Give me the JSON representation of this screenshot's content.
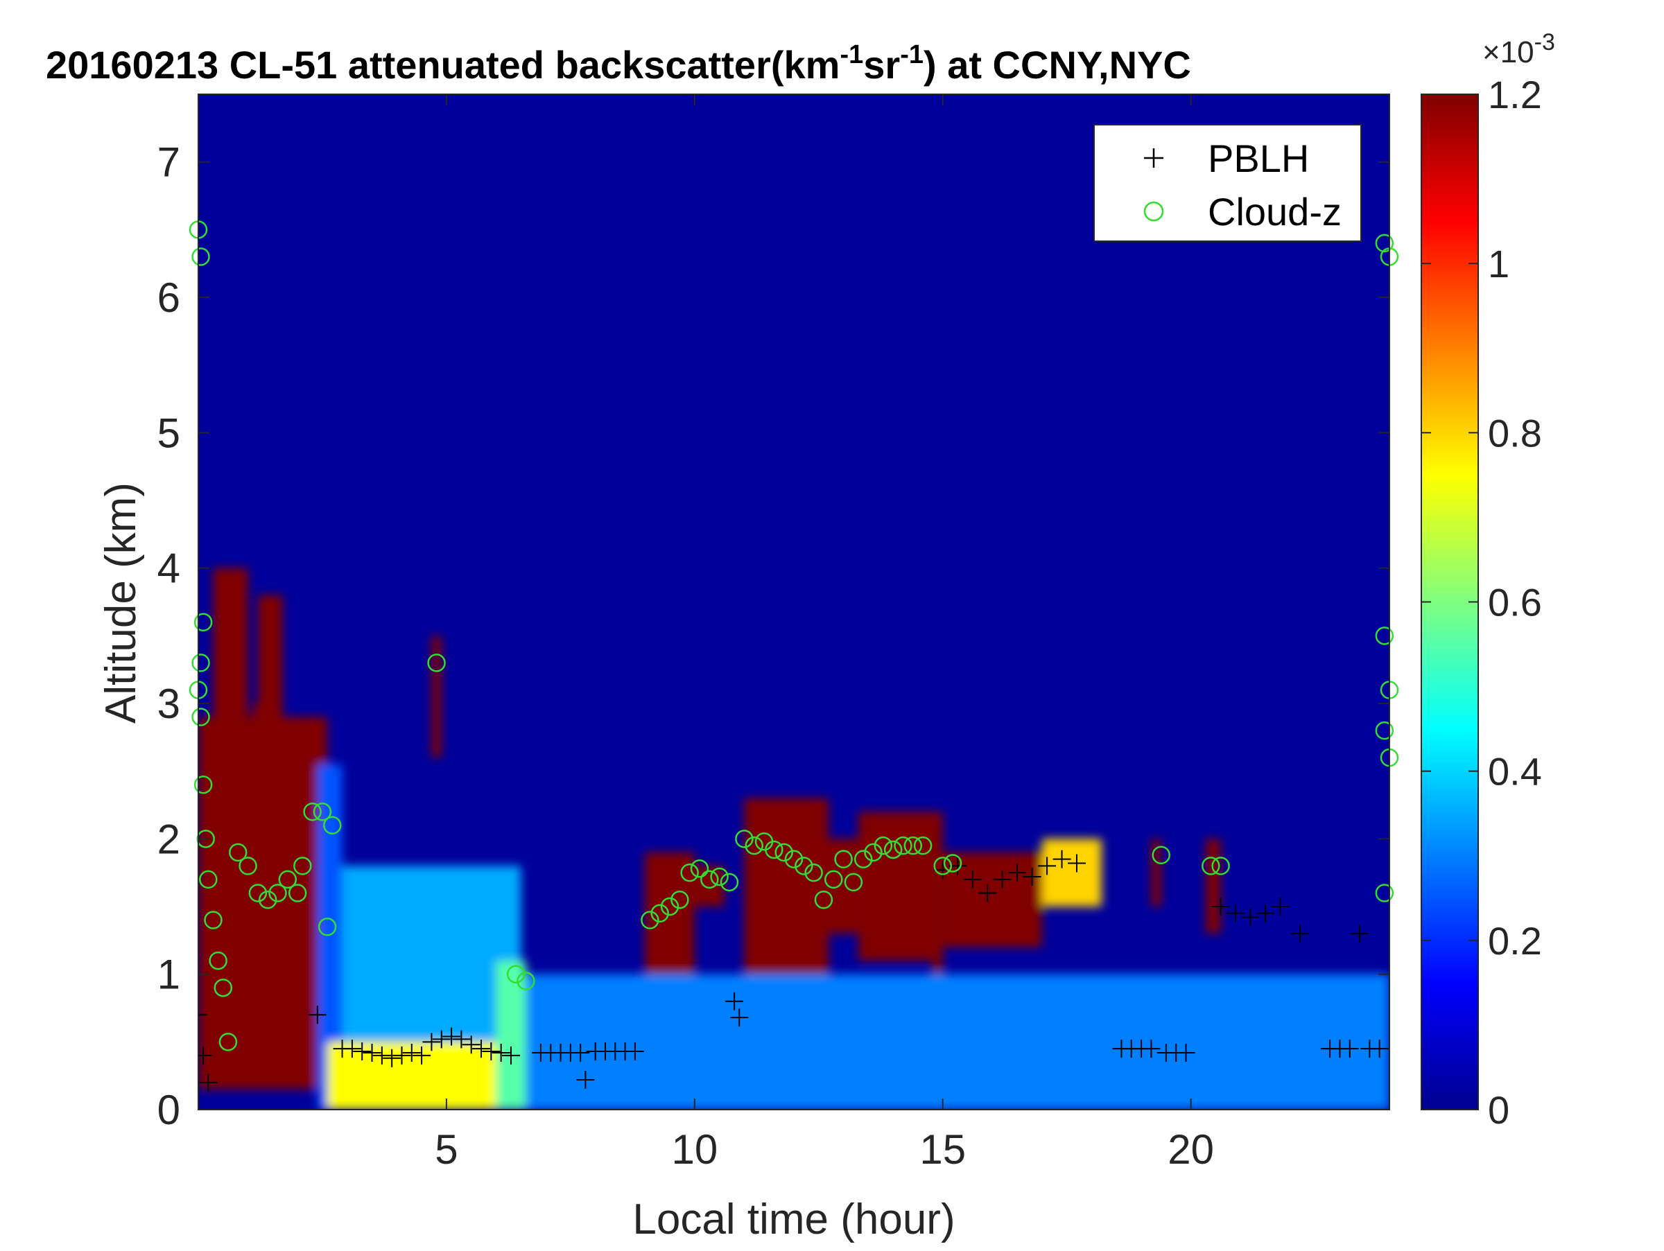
{
  "chart_data": {
    "type": "heatmap",
    "title": {
      "main": "20160213  CL-51 attenuated backscatter(km",
      "sup1": "-1",
      "mid": "sr",
      "sup2": "-1",
      "tail": ") at CCNY,NYC"
    },
    "xlabel": "Local time (hour)",
    "ylabel": "Altitude (km)",
    "xlim": [
      0,
      24
    ],
    "ylim": [
      0,
      7.5
    ],
    "xticks": [
      5,
      10,
      15,
      20
    ],
    "yticks": [
      0,
      1,
      2,
      3,
      4,
      5,
      6,
      7
    ],
    "colorbar": {
      "colormap": "jet",
      "range": [
        0,
        0.0012
      ],
      "ticks": [
        0,
        0.2,
        0.4,
        0.6,
        0.8,
        1,
        1.2
      ],
      "exponent_base": "×10",
      "exponent": "-3"
    },
    "legend": {
      "placement": "top-right",
      "entries": [
        {
          "name": "PBLH",
          "marker": "+",
          "color": "#000000"
        },
        {
          "name": "Cloud-z",
          "marker": "o",
          "color": "#33dd33"
        }
      ]
    },
    "layers": [
      {
        "x0": 0,
        "x1": 2.6,
        "y0": 0.15,
        "y1": 2.9,
        "value": 1.2
      },
      {
        "x0": 0.3,
        "x1": 1.0,
        "y0": 2.9,
        "y1": 4.0,
        "value": 1.2
      },
      {
        "x0": 1.1,
        "x1": 1.6,
        "y0": 2.9,
        "y1": 3.0,
        "value": 1.2
      },
      {
        "x0": 1.2,
        "x1": 1.7,
        "y0": 2.9,
        "y1": 3.8,
        "value": 1.2
      },
      {
        "x0": 1.7,
        "x1": 2.4,
        "y0": 2.5,
        "y1": 2.9,
        "value": 1.2
      },
      {
        "x0": 2.4,
        "x1": 2.9,
        "y0": 0.0,
        "y1": 2.55,
        "value": 0.25
      },
      {
        "x0": 2.6,
        "x1": 6.5,
        "y0": 0.0,
        "y1": 0.5,
        "value": 0.75
      },
      {
        "x0": 2.9,
        "x1": 6.5,
        "y0": 0.5,
        "y1": 1.8,
        "value": 0.35
      },
      {
        "x0": 6.0,
        "x1": 6.6,
        "y0": 0.0,
        "y1": 1.1,
        "value": 0.55
      },
      {
        "x0": 4.7,
        "x1": 4.9,
        "y0": 2.6,
        "y1": 3.5,
        "value": 1.2
      },
      {
        "x0": 9.0,
        "x1": 10.0,
        "y0": 0.4,
        "y1": 1.9,
        "value": 1.2
      },
      {
        "x0": 9.5,
        "x1": 10.0,
        "y0": 0.3,
        "y1": 0.9,
        "value": 1.2
      },
      {
        "x0": 10.0,
        "x1": 10.6,
        "y0": 1.5,
        "y1": 1.8,
        "value": 1.2
      },
      {
        "x0": 11.0,
        "x1": 12.7,
        "y0": 0.7,
        "y1": 2.3,
        "value": 1.2
      },
      {
        "x0": 12.2,
        "x1": 12.7,
        "y0": 0.4,
        "y1": 1.2,
        "value": 1.2
      },
      {
        "x0": 12.7,
        "x1": 13.3,
        "y0": 1.3,
        "y1": 2.0,
        "value": 1.2
      },
      {
        "x0": 13.3,
        "x1": 15.0,
        "y0": 1.1,
        "y1": 2.2,
        "value": 1.2
      },
      {
        "x0": 14.8,
        "x1": 15.0,
        "y0": 0.6,
        "y1": 1.2,
        "value": 1.2
      },
      {
        "x0": 15.0,
        "x1": 17.0,
        "y0": 1.2,
        "y1": 1.9,
        "value": 1.2
      },
      {
        "x0": 17.0,
        "x1": 18.2,
        "y0": 1.5,
        "y1": 2.0,
        "value": 0.8
      },
      {
        "x0": 19.2,
        "x1": 19.4,
        "y0": 1.5,
        "y1": 2.0,
        "value": 1.2
      },
      {
        "x0": 20.3,
        "x1": 20.6,
        "y0": 1.3,
        "y1": 2.0,
        "value": 1.2
      },
      {
        "x0": 6.6,
        "x1": 24.0,
        "y0": 0.0,
        "y1": 1.0,
        "value": 0.3
      }
    ],
    "pblh": {
      "x": [
        0.0,
        0.1,
        0.2,
        2.4,
        2.9,
        3.1,
        3.3,
        3.5,
        3.7,
        3.9,
        4.1,
        4.3,
        4.5,
        4.7,
        4.9,
        5.1,
        5.3,
        5.5,
        5.7,
        5.9,
        6.1,
        6.3,
        6.9,
        7.1,
        7.3,
        7.5,
        7.7,
        7.8,
        8.0,
        8.2,
        8.4,
        8.6,
        8.8,
        10.8,
        10.9,
        15.0,
        15.3,
        15.6,
        15.9,
        16.2,
        16.5,
        16.8,
        17.1,
        17.4,
        17.7,
        18.6,
        18.8,
        19.0,
        19.2,
        19.5,
        19.7,
        19.9,
        20.6,
        20.9,
        21.2,
        21.5,
        21.8,
        22.2,
        22.8,
        23.0,
        23.2,
        23.4,
        23.6,
        23.8
      ],
      "y": [
        0.7,
        0.4,
        0.2,
        0.7,
        0.45,
        0.45,
        0.43,
        0.42,
        0.4,
        0.38,
        0.4,
        0.42,
        0.4,
        0.5,
        0.52,
        0.54,
        0.52,
        0.48,
        0.45,
        0.43,
        0.42,
        0.4,
        0.42,
        0.42,
        0.42,
        0.42,
        0.42,
        0.22,
        0.43,
        0.43,
        0.43,
        0.43,
        0.43,
        0.8,
        0.68,
        1.77,
        1.8,
        1.7,
        1.6,
        1.7,
        1.75,
        1.72,
        1.8,
        1.85,
        1.82,
        0.45,
        0.45,
        0.45,
        0.45,
        0.42,
        0.42,
        0.42,
        1.5,
        1.45,
        1.42,
        1.45,
        1.5,
        1.3,
        0.45,
        0.45,
        0.45,
        1.3,
        0.45,
        0.45
      ]
    },
    "cloud_z": {
      "x": [
        0.0,
        0.05,
        0.1,
        0.05,
        0.0,
        0.05,
        0.1,
        0.15,
        0.2,
        0.3,
        0.4,
        0.5,
        0.6,
        0.8,
        1.0,
        1.2,
        1.4,
        1.6,
        1.8,
        2.0,
        2.1,
        2.3,
        2.5,
        2.6,
        2.7,
        4.8,
        6.4,
        6.6,
        9.1,
        9.3,
        9.5,
        9.7,
        9.9,
        10.1,
        10.3,
        10.5,
        10.7,
        11.0,
        11.2,
        11.4,
        11.6,
        11.8,
        12.0,
        12.2,
        12.4,
        12.6,
        12.8,
        13.0,
        13.2,
        13.4,
        13.6,
        13.8,
        14.0,
        14.2,
        14.4,
        14.6,
        15.0,
        15.2,
        19.4,
        20.4,
        20.6,
        23.9,
        24.0,
        23.9,
        24.0,
        23.9,
        24.0,
        23.9
      ],
      "y": [
        6.5,
        6.3,
        3.6,
        3.3,
        3.1,
        2.9,
        2.4,
        2.0,
        1.7,
        1.4,
        1.1,
        0.9,
        0.5,
        1.9,
        1.8,
        1.6,
        1.55,
        1.6,
        1.7,
        1.6,
        1.8,
        2.2,
        2.2,
        1.35,
        2.1,
        3.3,
        1.0,
        0.95,
        1.4,
        1.45,
        1.5,
        1.55,
        1.75,
        1.78,
        1.7,
        1.72,
        1.68,
        2.0,
        1.95,
        1.98,
        1.92,
        1.9,
        1.85,
        1.8,
        1.75,
        1.55,
        1.7,
        1.85,
        1.68,
        1.85,
        1.9,
        1.95,
        1.92,
        1.95,
        1.95,
        1.95,
        1.8,
        1.82,
        1.88,
        1.8,
        1.8,
        6.4,
        6.3,
        3.5,
        3.1,
        2.8,
        2.6,
        1.6
      ]
    }
  }
}
